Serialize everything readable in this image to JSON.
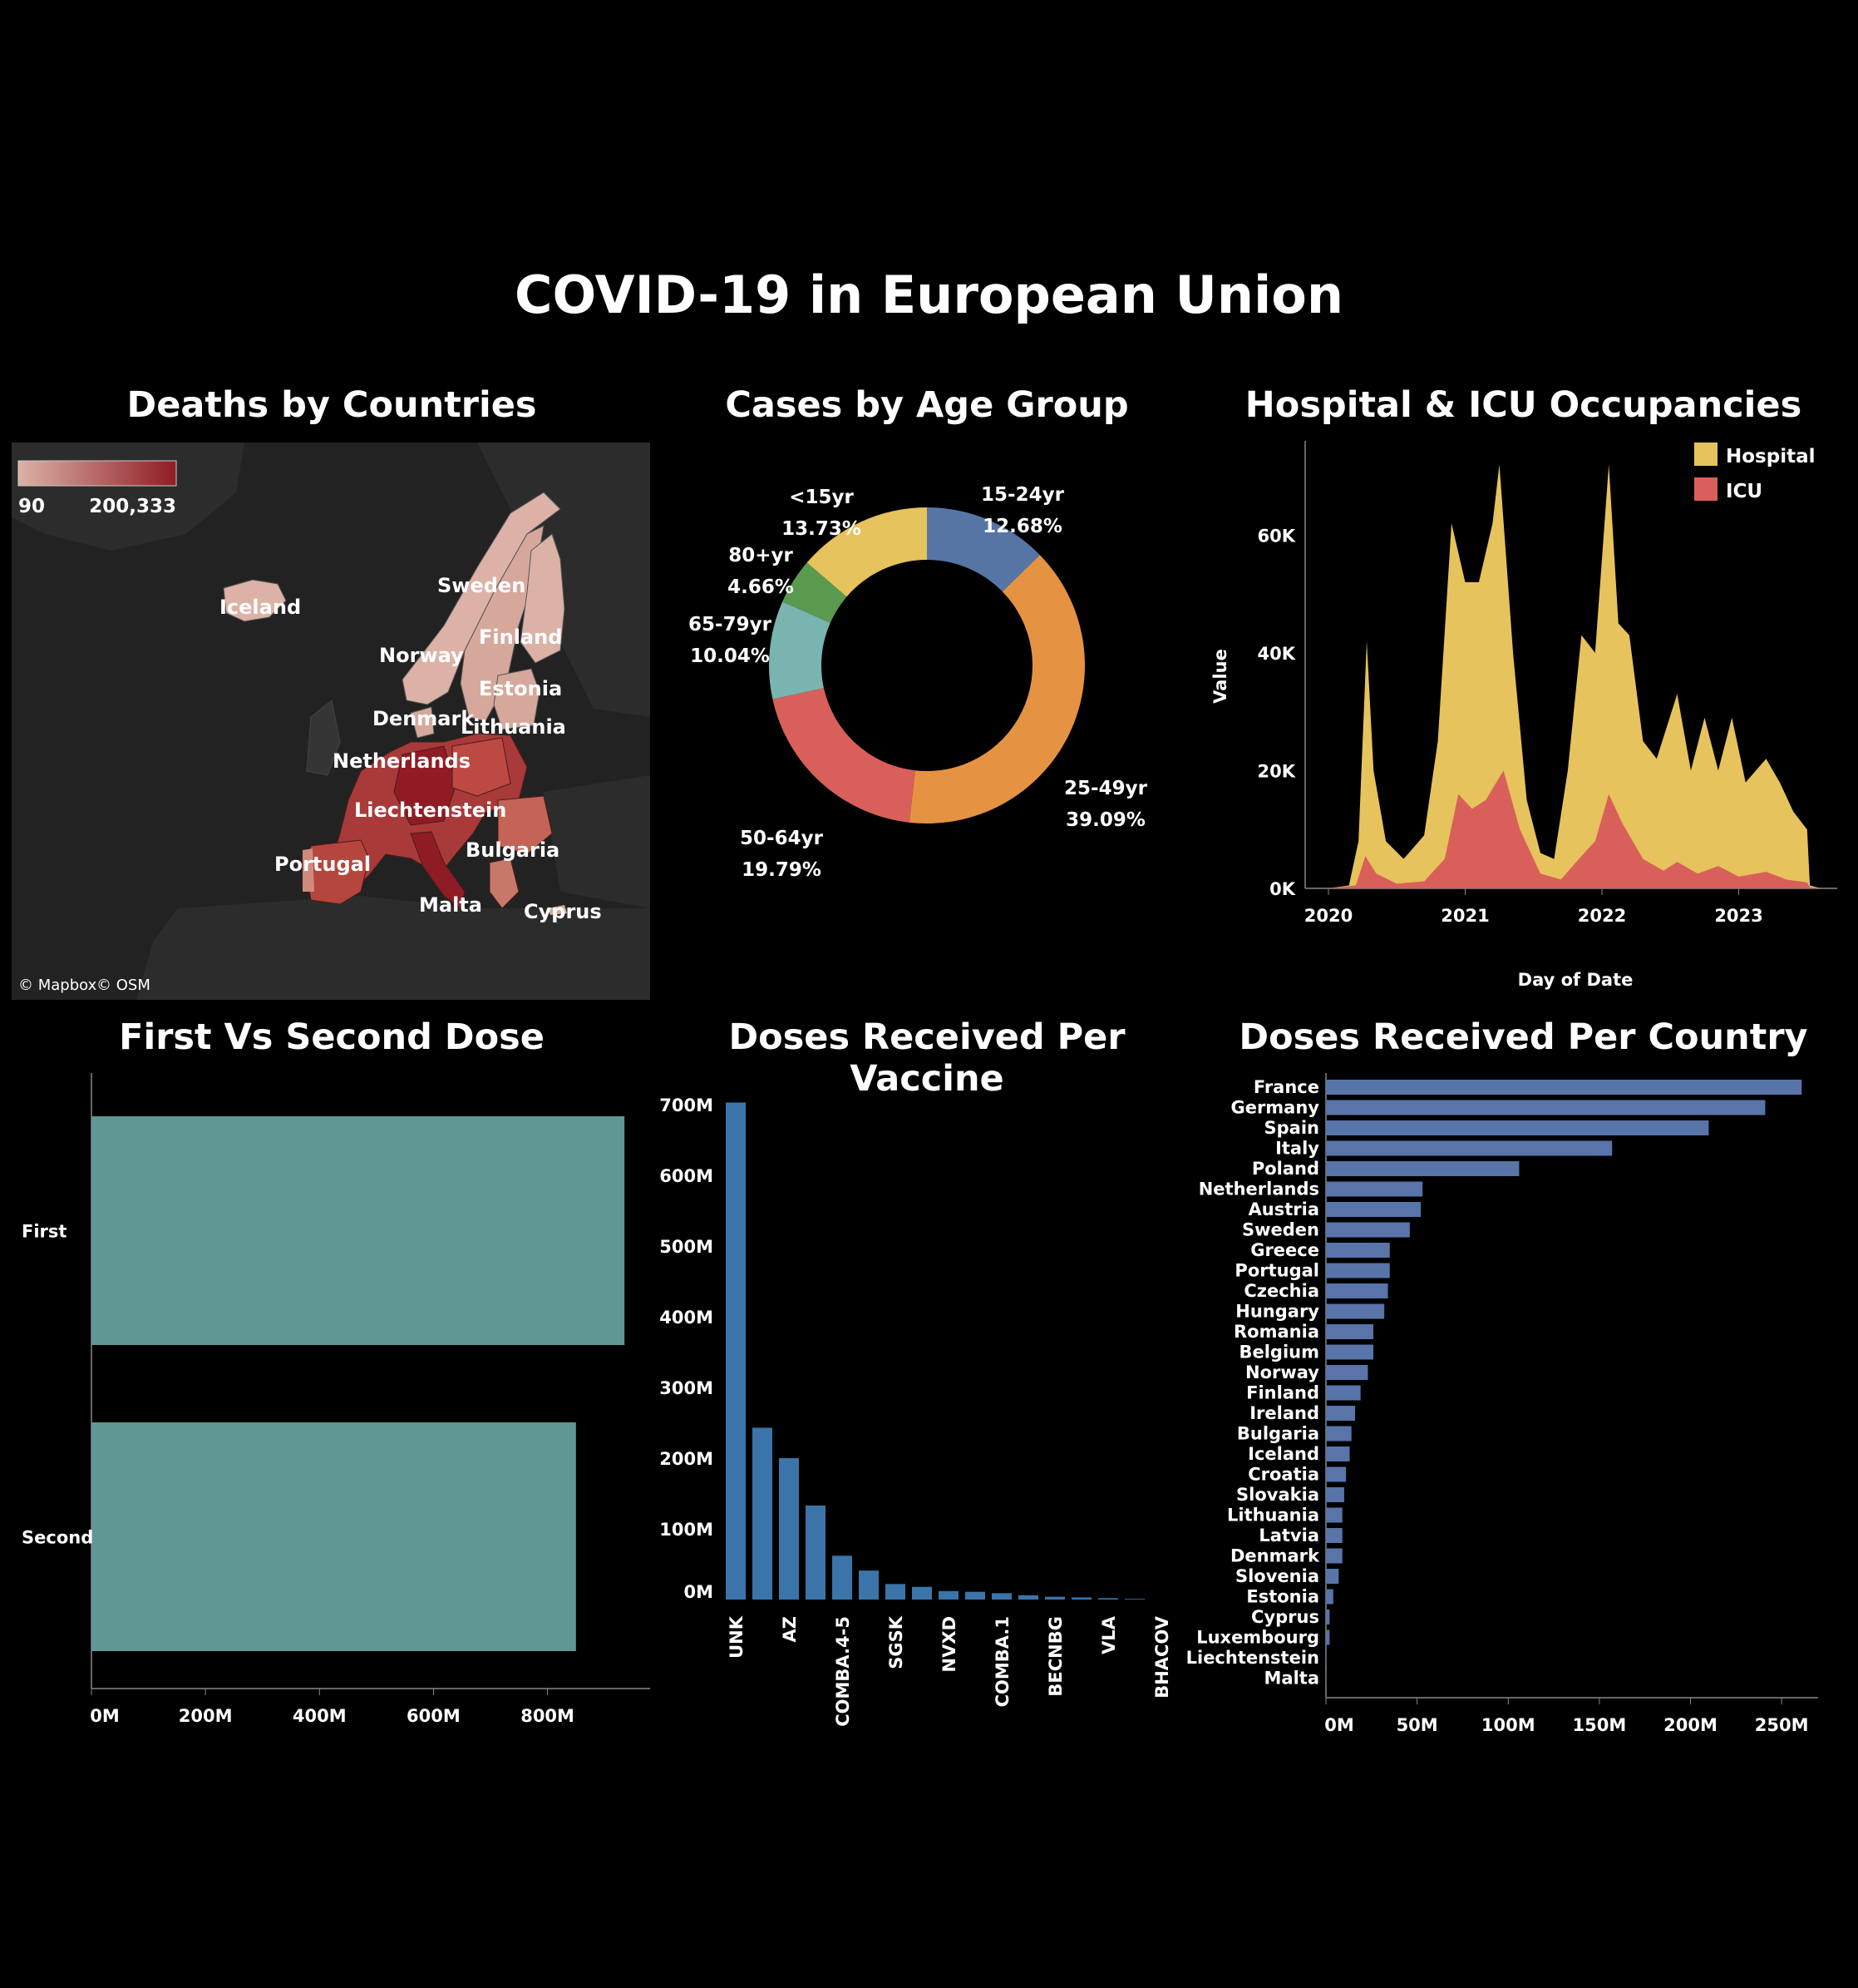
{
  "title": "COVID-19 in European Union",
  "panels": {
    "deaths_title": "Deaths by Countries",
    "age_title": "Cases by Age Group",
    "hosp_title": "Hospital & ICU Occupancies",
    "dose_title": "First Vs Second Dose",
    "vaccine_title": "Doses Received Per Vaccine",
    "country_title": "Doses Received Per Country"
  },
  "map": {
    "legend_min": "90",
    "legend_max": "200,333",
    "attribution_mapbox": "© Mapbox",
    "attribution_osm": "© OSM",
    "color_low": "#dcb2a6",
    "color_high": "#8f1c25",
    "labels": [
      "Iceland",
      "Sweden",
      "Finland",
      "Norway",
      "Estonia",
      "Denmark",
      "Lithuania",
      "Netherlands",
      "Liechtenstein",
      "Bulgaria",
      "Portugal",
      "Malta",
      "Cyprus"
    ]
  },
  "chart_data": [
    {
      "type": "pie",
      "title": "Cases by Age Group",
      "slices": [
        {
          "label": "15-24yr",
          "value": 12.68,
          "pct": "12.68%",
          "color": "#5675a5"
        },
        {
          "label": "25-49yr",
          "value": 39.09,
          "pct": "39.09%",
          "color": "#e59342"
        },
        {
          "label": "50-64yr",
          "value": 19.79,
          "pct": "19.79%",
          "color": "#d9605a"
        },
        {
          "label": "65-79yr",
          "value": 10.04,
          "pct": "10.04%",
          "color": "#79b4b0"
        },
        {
          "label": "80+yr",
          "value": 4.66,
          "pct": "4.66%",
          "color": "#5a9a4e"
        },
        {
          "label": "<15yr",
          "value": 13.73,
          "pct": "13.73%",
          "color": "#e6c35c"
        }
      ]
    },
    {
      "type": "area",
      "title": "Hospital & ICU Occupancies",
      "xlabel": "Day of Date",
      "ylabel": "Value",
      "xticks": [
        "2020",
        "2021",
        "2022",
        "2023"
      ],
      "yticks": [
        "0K",
        "20K",
        "40K",
        "60K"
      ],
      "ylim": [
        0,
        76000
      ],
      "legend_position": "top-right",
      "series": [
        {
          "name": "Hospital",
          "color": "#e6c35c",
          "points": [
            [
              2020.0,
              0
            ],
            [
              2020.15,
              500
            ],
            [
              2020.22,
              8000
            ],
            [
              2020.28,
              42000
            ],
            [
              2020.33,
              20000
            ],
            [
              2020.42,
              8000
            ],
            [
              2020.55,
              5000
            ],
            [
              2020.7,
              9000
            ],
            [
              2020.8,
              25000
            ],
            [
              2020.9,
              62000
            ],
            [
              2021.0,
              52000
            ],
            [
              2021.1,
              52000
            ],
            [
              2021.2,
              62000
            ],
            [
              2021.25,
              72000
            ],
            [
              2021.35,
              40000
            ],
            [
              2021.45,
              15000
            ],
            [
              2021.55,
              6000
            ],
            [
              2021.65,
              5000
            ],
            [
              2021.75,
              20000
            ],
            [
              2021.85,
              43000
            ],
            [
              2021.95,
              40000
            ],
            [
              2022.05,
              72000
            ],
            [
              2022.12,
              45000
            ],
            [
              2022.2,
              43000
            ],
            [
              2022.3,
              25000
            ],
            [
              2022.4,
              22000
            ],
            [
              2022.55,
              33000
            ],
            [
              2022.65,
              20000
            ],
            [
              2022.75,
              29000
            ],
            [
              2022.85,
              20000
            ],
            [
              2022.95,
              29000
            ],
            [
              2023.05,
              18000
            ],
            [
              2023.2,
              22000
            ],
            [
              2023.3,
              18000
            ],
            [
              2023.4,
              13000
            ],
            [
              2023.5,
              10000
            ],
            [
              2023.52,
              500
            ],
            [
              2023.6,
              0
            ]
          ]
        },
        {
          "name": "ICU",
          "color": "#d9605a",
          "points": [
            [
              2020.0,
              0
            ],
            [
              2020.2,
              500
            ],
            [
              2020.27,
              5500
            ],
            [
              2020.35,
              2500
            ],
            [
              2020.5,
              800
            ],
            [
              2020.7,
              1200
            ],
            [
              2020.85,
              5000
            ],
            [
              2020.95,
              16000
            ],
            [
              2021.05,
              13500
            ],
            [
              2021.15,
              15000
            ],
            [
              2021.28,
              20000
            ],
            [
              2021.4,
              10000
            ],
            [
              2021.55,
              2500
            ],
            [
              2021.7,
              1500
            ],
            [
              2021.85,
              5500
            ],
            [
              2021.95,
              8000
            ],
            [
              2022.05,
              16000
            ],
            [
              2022.15,
              11000
            ],
            [
              2022.3,
              5000
            ],
            [
              2022.45,
              3000
            ],
            [
              2022.55,
              4500
            ],
            [
              2022.7,
              2500
            ],
            [
              2022.85,
              3800
            ],
            [
              2023.0,
              2000
            ],
            [
              2023.2,
              2800
            ],
            [
              2023.35,
              1500
            ],
            [
              2023.5,
              1000
            ],
            [
              2023.52,
              200
            ],
            [
              2023.6,
              0
            ]
          ]
        }
      ]
    },
    {
      "type": "bar",
      "orientation": "horizontal",
      "title": "First Vs Second Dose",
      "categories": [
        "First",
        "Second"
      ],
      "values": [
        935000000,
        850000000
      ],
      "xticks": [
        "0M",
        "200M",
        "400M",
        "600M",
        "800M"
      ],
      "xlim": [
        0,
        980000000
      ],
      "color": "#5f9792"
    },
    {
      "type": "bar",
      "title": "Doses Received Per Vaccine",
      "categories": [
        "UNK",
        "",
        "AZ",
        "",
        "COMBA.4-5",
        "",
        "SGSK",
        "",
        "NVXD",
        "",
        "COMBA.1",
        "",
        "BECNBG",
        "",
        "VLA",
        "",
        "BHACOV"
      ],
      "values": [
        703000000,
        243000000,
        200000000,
        133000000,
        62000000,
        41000000,
        22000000,
        18000000,
        12000000,
        11000000,
        9000000,
        6000000,
        4000000,
        3000000,
        2000000,
        1000000,
        0
      ],
      "yticks": [
        "0M",
        "100M",
        "200M",
        "300M",
        "400M",
        "500M",
        "600M",
        "700M"
      ],
      "ylim": [
        0,
        700000000
      ],
      "color": "#3b74a8"
    },
    {
      "type": "bar",
      "orientation": "horizontal",
      "title": "Doses Received Per Country",
      "categories": [
        "France",
        "Germany",
        "Spain",
        "Italy",
        "Poland",
        "Netherlands",
        "Austria",
        "Sweden",
        "Greece",
        "Portugal",
        "Czechia",
        "Hungary",
        "Romania",
        "Belgium",
        "Norway",
        "Finland",
        "Ireland",
        "Bulgaria",
        "Iceland",
        "Croatia",
        "Slovakia",
        "Lithuania",
        "Latvia",
        "Denmark",
        "Slovenia",
        "Estonia",
        "Cyprus",
        "Luxembourg",
        "Liechtenstein",
        "Malta"
      ],
      "values": [
        261000000,
        241000000,
        210000000,
        157000000,
        106000000,
        53000000,
        52000000,
        46000000,
        35000000,
        35000000,
        34000000,
        32000000,
        26000000,
        26000000,
        23000000,
        19000000,
        16000000,
        14000000,
        13000000,
        11000000,
        10000000,
        9000000,
        9000000,
        9000000,
        7000000,
        4000000,
        2000000,
        2000000,
        100000,
        100000
      ],
      "xticks": [
        "0M",
        "50M",
        "100M",
        "150M",
        "200M",
        "250M"
      ],
      "xlim": [
        0,
        270000000
      ],
      "color": "#5874a9"
    }
  ]
}
